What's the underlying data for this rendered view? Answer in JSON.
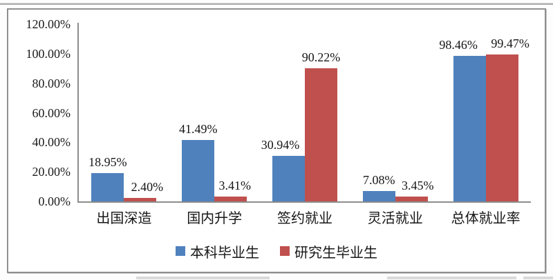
{
  "chart_data": {
    "type": "bar",
    "title": "",
    "categories": [
      "出国深造",
      "国内升学",
      "签约就业",
      "灵活就业",
      "总体就业率"
    ],
    "series": [
      {
        "name": "本科毕业生",
        "color": "#4F81BD",
        "values": [
          18.95,
          41.49,
          30.94,
          7.08,
          98.46
        ],
        "labels": [
          "18.95%",
          "41.49%",
          "30.94%",
          "7.08%",
          "98.46%"
        ]
      },
      {
        "name": "研究生毕业生",
        "color": "#C0504D",
        "values": [
          2.4,
          3.41,
          90.22,
          3.45,
          99.47
        ],
        "labels": [
          "2.40%",
          "3.41%",
          "90.22%",
          "3.45%",
          "99.47%"
        ]
      }
    ],
    "y_axis": {
      "min": 0,
      "max": 120,
      "step": 20,
      "tick_labels": [
        "0.00%",
        "20.00%",
        "40.00%",
        "60.00%",
        "80.00%",
        "100.00%",
        "120.00%"
      ]
    },
    "xlabel": "",
    "ylabel": "",
    "grid": false,
    "legend_position": "bottom",
    "label_dx": [
      [
        0,
        0,
        -12,
        0,
        -16
      ],
      [
        10,
        6,
        0,
        9,
        12
      ]
    ]
  }
}
